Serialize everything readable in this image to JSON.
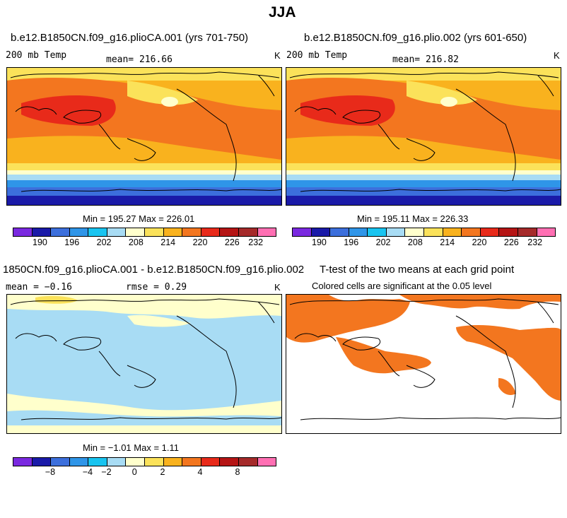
{
  "figure_title": "JJA",
  "panels": {
    "top_left": {
      "title": "b.e12.B1850CN.f09_g16.plioCA.001 (yrs 701-750)",
      "variable": "200 mb Temp",
      "mean_label": "mean= 216.66",
      "units": "K",
      "minmax": "Min = 195.27 Max = 226.01"
    },
    "top_right": {
      "title": "b.e12.B1850CN.f09_g16.plio.002 (yrs 601-650)",
      "variable": "200 mb Temp",
      "mean_label": "mean= 216.82",
      "units": "K",
      "minmax": "Min = 195.11 Max = 226.33"
    },
    "bottom_left": {
      "title": "1850CN.f09_g16.plioCA.001 - b.e12.B1850CN.f09_g16.plio.002",
      "mean_label": "mean =  −0.16",
      "rmse_label": "rmse =   0.29",
      "units": "K",
      "minmax": "Min =  −1.01 Max =   1.11"
    },
    "bottom_right": {
      "title": "T-test of the two means at each grid point",
      "subtitle": "Colored cells are significant at the 0.05 level"
    }
  },
  "colorbar_colors": [
    "#7a29e0",
    "#1a1aa8",
    "#3c6fdc",
    "#2f95e8",
    "#18c4f0",
    "#a8dcf4",
    "#ffffcc",
    "#fbe25a",
    "#f9b21e",
    "#f3761f",
    "#e82a1a",
    "#b51515",
    "#a52a2a",
    "#ff6fb3"
  ],
  "colorbar_abs_ticks": [
    "190",
    "196",
    "202",
    "208",
    "214",
    "220",
    "226",
    "232"
  ],
  "colorbar_diff_ticks": [
    "−8",
    "−4",
    "−2",
    "0",
    "2",
    "4",
    "8"
  ],
  "field_colors": {
    "red": "#e82a1a",
    "orange_red": "#f3761f",
    "orange": "#f9b21e",
    "yellow": "#fbe25a",
    "pale_yellow": "#ffffcc",
    "light_blue": "#a8dcf4",
    "cyan": "#18c4f0",
    "blue": "#2f95e8",
    "mid_blue": "#3c6fdc",
    "dark_blue": "#1a1aa8",
    "signif": "#f3761f"
  }
}
